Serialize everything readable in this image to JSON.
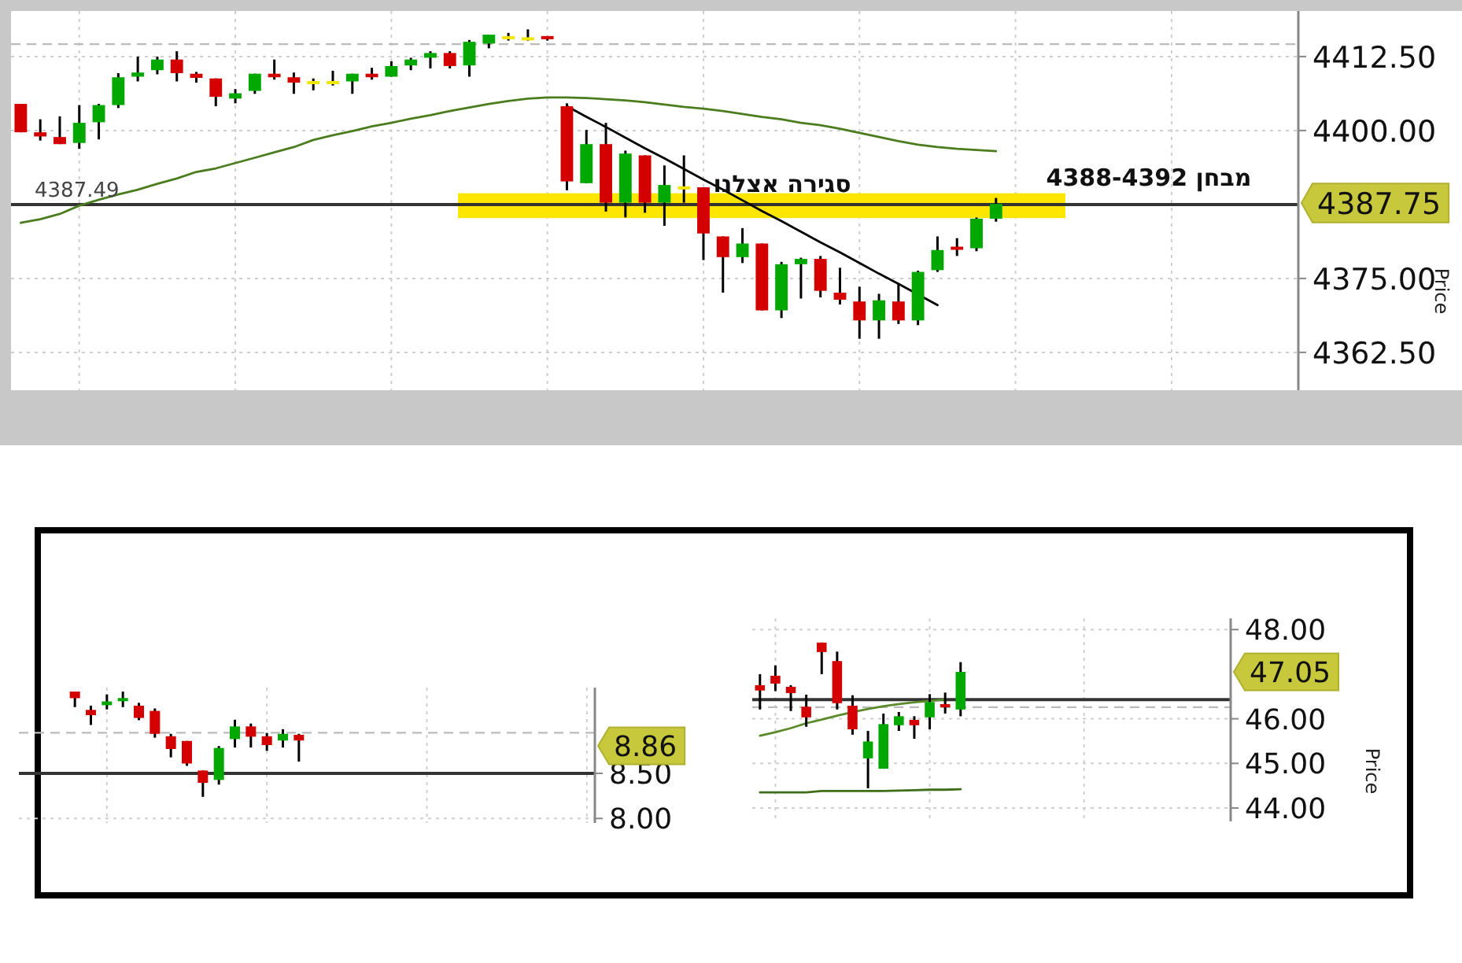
{
  "chart_data": [
    {
      "type": "candlestick",
      "ylabel": "Price",
      "grid": true,
      "categories": [
        null,
        null,
        null,
        null,
        null,
        null,
        null,
        null,
        null,
        null,
        null,
        null,
        null,
        null,
        null,
        null,
        null,
        null,
        null,
        null,
        null,
        null,
        null,
        null,
        null,
        null,
        null,
        null,
        null,
        null,
        null,
        null,
        null,
        null,
        null,
        null,
        null,
        null,
        null,
        null,
        null,
        null,
        null,
        null,
        null,
        null,
        null,
        null,
        null,
        null,
        null,
        null,
        null,
        null,
        null,
        null,
        null,
        null,
        null,
        null,
        null,
        null,
        null,
        null,
        null,
        null
      ],
      "ohlc": [
        [
          4404.5,
          4404.5,
          4399.7,
          4399.7
        ],
        [
          4399.7,
          4401.9,
          4398.3,
          4399.0
        ],
        [
          4398.9,
          4402.4,
          4397.7,
          4397.7
        ],
        [
          4397.9,
          4404.3,
          4396.9,
          4401.3
        ],
        [
          4401.4,
          4404.5,
          4398.5,
          4404.3
        ],
        [
          4404.3,
          4409.7,
          4403.8,
          4409.0
        ],
        [
          4409.1,
          4412.5,
          4408.3,
          4409.8
        ],
        [
          4410.2,
          4412.5,
          4409.5,
          4412.0
        ],
        [
          4412.0,
          4413.4,
          4408.3,
          4409.7
        ],
        [
          4409.6,
          4409.9,
          4408.1,
          4408.9
        ],
        [
          4408.8,
          4408.8,
          4404.1,
          4405.7
        ],
        [
          4405.4,
          4407.0,
          4404.6,
          4406.3
        ],
        [
          4406.7,
          4409.6,
          4406.2,
          4409.6
        ],
        [
          4409.6,
          4412.0,
          4408.6,
          4409.0
        ],
        [
          4409.0,
          4409.8,
          4406.2,
          4408.1
        ],
        [
          4408.1,
          4408.8,
          4406.8,
          4408.1
        ],
        [
          4408.1,
          4410.1,
          4407.6,
          4408.1
        ],
        [
          4408.3,
          4409.6,
          4406.2,
          4409.6
        ],
        [
          4409.6,
          4410.6,
          4408.6,
          4409.0
        ],
        [
          4409.1,
          4411.7,
          4409.1,
          4410.9
        ],
        [
          4411.0,
          4412.3,
          4410.2,
          4412.0
        ],
        [
          4412.3,
          4413.4,
          4410.5,
          4413.1
        ],
        [
          4413.1,
          4413.4,
          4410.5,
          4410.9
        ],
        [
          4411.0,
          4415.3,
          4409.1,
          4415.0
        ],
        [
          4414.7,
          4416.2,
          4413.9,
          4416.2
        ],
        [
          4415.7,
          4416.5,
          4415.2,
          4415.7
        ],
        [
          4415.5,
          4417.1,
          4415.2,
          4415.5
        ],
        [
          4415.7,
          4415.7,
          4415.2,
          4415.2
        ],
        [
          4404.1,
          4404.6,
          4389.9,
          4391.4
        ],
        [
          4391.1,
          4400.1,
          4391.1,
          4397.7
        ],
        [
          4397.7,
          4401.3,
          4386.3,
          4387.8
        ],
        [
          4387.8,
          4396.6,
          4385.3,
          4396.1
        ],
        [
          4395.8,
          4395.8,
          4386.1,
          4387.8
        ],
        [
          4387.8,
          4394.1,
          4383.9,
          4390.8
        ],
        [
          4390.3,
          4395.8,
          4387.8,
          4390.3
        ],
        [
          4390.4,
          4390.4,
          4378.1,
          4382.6
        ],
        [
          4382.1,
          4382.1,
          4372.6,
          4378.6
        ],
        [
          4378.6,
          4383.5,
          4377.6,
          4380.9
        ],
        [
          4380.9,
          4380.9,
          4369.6,
          4369.6
        ],
        [
          4369.6,
          4377.8,
          4368.3,
          4377.4
        ],
        [
          4377.4,
          4378.5,
          4371.6,
          4378.3
        ],
        [
          4378.3,
          4378.8,
          4371.8,
          4372.9
        ],
        [
          4372.6,
          4376.8,
          4370.6,
          4371.4
        ],
        [
          4371.1,
          4373.6,
          4364.8,
          4367.9
        ],
        [
          4367.9,
          4372.4,
          4364.8,
          4371.3
        ],
        [
          4371.1,
          4374.1,
          4367.3,
          4367.9
        ],
        [
          4367.9,
          4376.3,
          4367.1,
          4376.1
        ],
        [
          4376.4,
          4382.1,
          4376.1,
          4379.8
        ],
        [
          4380.1,
          4381.8,
          4378.8,
          4379.6
        ],
        [
          4380.1,
          4385.3,
          4379.6,
          4385.1
        ],
        [
          4385.1,
          4388.6,
          4384.6,
          4387.6
        ],
        null,
        null,
        null,
        null,
        null,
        null,
        null,
        null,
        null,
        null,
        null,
        null,
        null,
        null,
        null
      ],
      "colors": [
        "#d40000",
        "#d40000",
        "#d40000",
        "#00a800",
        "#00a800",
        "#00a800",
        "#00a800",
        "#00a800",
        "#d40000",
        "#d40000",
        "#d40000",
        "#00a800",
        "#00a800",
        "#d40000",
        "#d40000",
        "#f2e600",
        "#f2e600",
        "#00a800",
        "#d40000",
        "#00a800",
        "#00a800",
        "#00a800",
        "#d40000",
        "#00a800",
        "#00a800",
        "#f2e600",
        "#f2e600",
        "#d40000",
        "#d40000",
        "#00a800",
        "#d40000",
        "#00a800",
        "#d40000",
        "#00a800",
        "#f2e600",
        "#d40000",
        "#d40000",
        "#00a800",
        "#d40000",
        "#00a800",
        "#00a800",
        "#d40000",
        "#d40000",
        "#d40000",
        "#00a800",
        "#d40000",
        "#00a800",
        "#00a800",
        "#d40000",
        "#00a800",
        "#00a800",
        null,
        null,
        null,
        null,
        null,
        null,
        null,
        null,
        null,
        null,
        null,
        null,
        null,
        null,
        null
      ],
      "series": [
        {
          "type": "line",
          "color": "#4b7d1e",
          "values": [
            4384.4,
            4385.0,
            4385.9,
            4387.3,
            4388.3,
            4389.2,
            4390.0,
            4391.0,
            4391.9,
            4393.0,
            4393.6,
            4394.5,
            4395.4,
            4396.3,
            4397.2,
            4398.4,
            4399.2,
            4399.9,
            4400.7,
            4401.3,
            4402.0,
            4402.6,
            4403.3,
            4403.9,
            4404.5,
            4405.0,
            4405.4,
            4405.6,
            4405.6,
            4405.5,
            4405.3,
            4405.1,
            4404.8,
            4404.4,
            4404.0,
            4403.7,
            4403.3,
            4402.8,
            4402.3,
            4401.9,
            4401.3,
            4400.9,
            4400.3,
            4399.6,
            4398.9,
            4398.2,
            4397.6,
            4397.2,
            4396.9,
            4396.7,
            4396.5,
            null,
            null,
            null,
            null,
            null,
            null,
            null,
            null,
            null,
            null,
            null,
            null,
            null,
            null,
            null
          ]
        },
        {
          "type": "line",
          "color": "#000000",
          "values": [
            null,
            null,
            null,
            null,
            null,
            null,
            null,
            null,
            null,
            null,
            null,
            null,
            null,
            null,
            null,
            null,
            null,
            null,
            null,
            null,
            null,
            null,
            null,
            null,
            null,
            null,
            null,
            null,
            4404.1,
            4402.3,
            4400.6,
            4398.8,
            4397.0,
            4395.3,
            4393.5,
            4391.7,
            4390.0,
            4388.2,
            4386.4,
            4384.7,
            4382.9,
            4381.1,
            4379.4,
            4377.6,
            4375.8,
            4374.1,
            4372.3,
            4370.5,
            null,
            null,
            null,
            null,
            null,
            null,
            null,
            null,
            null,
            null,
            null,
            null,
            null,
            null,
            null,
            null,
            null,
            null
          ]
        }
      ],
      "ylim": [
        4356.1,
        4420.2
      ],
      "yticks": [
        {
          "value": 4362.5,
          "label": "4362.50"
        },
        {
          "value": 4375,
          "label": "4375.00"
        },
        {
          "value": 4400,
          "label": "4400.00"
        },
        {
          "value": 4412.5,
          "label": "4412.50"
        }
      ],
      "bands": [
        {
          "axis": "y",
          "from": 4385.2,
          "to": 4389.4,
          "color": "#ffe600"
        }
      ],
      "ref_lines": [
        {
          "axis": "y",
          "value": 4387.49,
          "label": "4387.49",
          "color": "#333333"
        },
        {
          "axis": "y",
          "value": 4414.6,
          "color": "#bbbbbb",
          "line_style": "dashed"
        }
      ],
      "annotations": [
        "סגירה אצלנו",
        "מבחן 4388-4392",
        "4387.75"
      ]
    },
    {
      "type": "candlestick",
      "grid": true,
      "categories": [
        null,
        null,
        null,
        null,
        null,
        null,
        null,
        null,
        null,
        null,
        null,
        null,
        null,
        null,
        null,
        null,
        null,
        null,
        null,
        null,
        null,
        null,
        null,
        null,
        null,
        null,
        null,
        null,
        null,
        null,
        null,
        null,
        null,
        null,
        null,
        null
      ],
      "ohlc": [
        null,
        null,
        null,
        [
          9.406,
          9.406,
          9.234,
          9.333
        ],
        [
          9.203,
          9.25,
          9.036,
          9.145
        ],
        [
          9.255,
          9.375,
          9.208,
          9.297
        ],
        [
          9.286,
          9.406,
          9.234,
          9.317
        ],
        [
          9.25,
          9.281,
          9.089,
          9.114
        ],
        [
          9.192,
          9.219,
          8.895,
          8.938
        ],
        [
          8.911,
          8.938,
          8.677,
          8.77
        ],
        [
          8.859,
          8.859,
          8.583,
          8.609
        ],
        [
          8.531,
          8.531,
          8.239,
          8.395
        ],
        [
          8.427,
          8.802,
          8.375,
          8.781
        ],
        [
          8.88,
          9.094,
          8.786,
          9.02
        ],
        [
          9.02,
          9.052,
          8.786,
          8.906
        ],
        [
          8.911,
          8.948,
          8.75,
          8.813
        ],
        [
          8.864,
          8.989,
          8.786,
          8.938
        ],
        [
          8.927,
          8.938,
          8.63,
          8.864
        ],
        null,
        null,
        null,
        null,
        null,
        null,
        null,
        null,
        null,
        null,
        null,
        null,
        null,
        null,
        null,
        null,
        null,
        null
      ],
      "colors": [
        null,
        null,
        null,
        "#d40000",
        "#d40000",
        "#00a800",
        "#00a800",
        "#d40000",
        "#d40000",
        "#d40000",
        "#d40000",
        "#d40000",
        "#00a800",
        "#00a800",
        "#d40000",
        "#d40000",
        "#00a800",
        "#d40000",
        null,
        null,
        null,
        null,
        null,
        null,
        null,
        null,
        null,
        null,
        null,
        null,
        null,
        null,
        null,
        null,
        null,
        null
      ],
      "ylim": [
        7.95,
        9.45
      ],
      "yticks": [
        {
          "value": 8.0,
          "label": "8.00"
        },
        {
          "value": 8.5,
          "label": "8.50"
        }
      ],
      "ref_lines": [
        {
          "axis": "y",
          "value": 8.5,
          "color": "#333333"
        },
        {
          "axis": "y",
          "value": 8.95,
          "color": "#bbbbbb",
          "line_style": "dashed"
        }
      ],
      "annotations": [
        "8.86"
      ]
    },
    {
      "type": "candlestick",
      "grid": true,
      "ylabel": "Price",
      "categories": [
        null,
        null,
        null,
        null,
        null,
        null,
        null,
        null,
        null,
        null,
        null,
        null,
        null,
        null,
        null,
        null,
        null,
        null,
        null,
        null,
        null,
        null,
        null,
        null,
        null,
        null,
        null,
        null,
        null,
        null,
        null
      ],
      "ohlc": [
        [
          46.753,
          47.0,
          46.208,
          46.633
        ],
        [
          46.965,
          47.198,
          46.622,
          46.788
        ],
        [
          46.717,
          46.753,
          46.173,
          46.576
        ],
        [
          46.269,
          46.541,
          45.82,
          46.032
        ],
        [
          47.707,
          47.707,
          47.0,
          47.495
        ],
        [
          47.293,
          47.505,
          46.208,
          46.35
        ],
        [
          46.293,
          46.527,
          45.643,
          45.763
        ],
        [
          45.113,
          45.728,
          44.442,
          45.491
        ],
        [
          44.88,
          46.117,
          44.88,
          45.88
        ],
        [
          45.855,
          46.152,
          45.728,
          46.057
        ],
        [
          45.975,
          46.057,
          45.551,
          45.855
        ],
        [
          46.032,
          46.551,
          45.763,
          46.375
        ],
        [
          46.293,
          46.587,
          46.117,
          46.244
        ],
        [
          46.208,
          47.269,
          46.057,
          47.05
        ],
        null,
        null,
        null,
        null,
        null,
        null,
        null,
        null,
        null,
        null,
        null,
        null,
        null,
        null,
        null,
        null,
        null
      ],
      "colors": [
        "#d40000",
        "#d40000",
        "#d40000",
        "#d40000",
        "#d40000",
        "#d40000",
        "#d40000",
        "#00a800",
        "#00a800",
        "#00a800",
        "#d40000",
        "#00a800",
        "#d40000",
        "#00a800",
        null,
        null,
        null,
        null,
        null,
        null,
        null,
        null,
        null,
        null,
        null,
        null,
        null,
        null,
        null,
        null,
        null
      ],
      "series": [
        {
          "type": "line",
          "color": "#5a8a2a",
          "values": [
            45.62,
            45.7,
            45.79,
            45.9,
            45.98,
            46.07,
            46.15,
            46.22,
            46.28,
            46.33,
            46.37,
            46.4,
            46.43,
            null,
            null,
            null,
            null,
            null,
            null,
            null,
            null,
            null,
            null,
            null,
            null,
            null,
            null,
            null,
            null,
            null,
            null
          ]
        },
        {
          "type": "line",
          "color": "#3f6e1a",
          "values": [
            44.35,
            44.35,
            44.35,
            44.35,
            44.38,
            44.38,
            44.38,
            44.38,
            44.38,
            44.39,
            44.4,
            44.41,
            44.41,
            44.42,
            null,
            null,
            null,
            null,
            null,
            null,
            null,
            null,
            null,
            null,
            null,
            null,
            null,
            null,
            null,
            null,
            null
          ]
        }
      ],
      "ylim": [
        43.7,
        48.25
      ],
      "yticks": [
        {
          "value": 44,
          "label": "44.00"
        },
        {
          "value": 45,
          "label": "45.00"
        },
        {
          "value": 46,
          "label": "46.00"
        },
        {
          "value": 48,
          "label": "48.00"
        }
      ],
      "ref_lines": [
        {
          "axis": "y",
          "value": 46.43,
          "color": "#333333"
        },
        {
          "axis": "y",
          "value": 46.26,
          "color": "#bbbbbb",
          "line_style": "dashed"
        }
      ],
      "annotations": [
        "47.05"
      ]
    }
  ]
}
